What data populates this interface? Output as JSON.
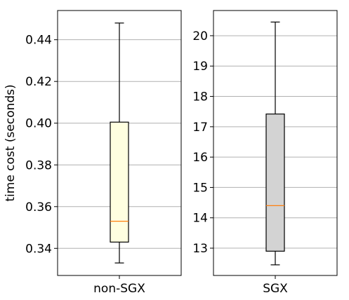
{
  "chart_data": [
    {
      "type": "box",
      "ylabel": "time cost (seconds)",
      "category": "non-SGX",
      "ylim": [
        0.327,
        0.454
      ],
      "yticks": [
        0.34,
        0.36,
        0.38,
        0.4,
        0.42,
        0.44
      ],
      "ytick_labels": [
        "0.34",
        "0.36",
        "0.38",
        "0.40",
        "0.42",
        "0.44"
      ],
      "grid": "horizontal",
      "box": {
        "whisker_low": 0.333,
        "q1": 0.343,
        "median": 0.353,
        "q3": 0.4005,
        "whisker_high": 0.448
      },
      "box_color": "#ffffe0",
      "median_color": "#ff7f0e"
    },
    {
      "type": "box",
      "ylabel": "",
      "category": "SGX",
      "ylim": [
        12.1,
        20.83
      ],
      "yticks": [
        13,
        14,
        15,
        16,
        17,
        18,
        19,
        20
      ],
      "ytick_labels": [
        "13",
        "14",
        "15",
        "16",
        "17",
        "18",
        "19",
        "20"
      ],
      "grid": "horizontal",
      "box": {
        "whisker_low": 12.45,
        "q1": 12.9,
        "median": 14.4,
        "q3": 17.42,
        "whisker_high": 20.45
      },
      "box_color": "#d3d3d3",
      "median_color": "#ff7f0e"
    }
  ]
}
